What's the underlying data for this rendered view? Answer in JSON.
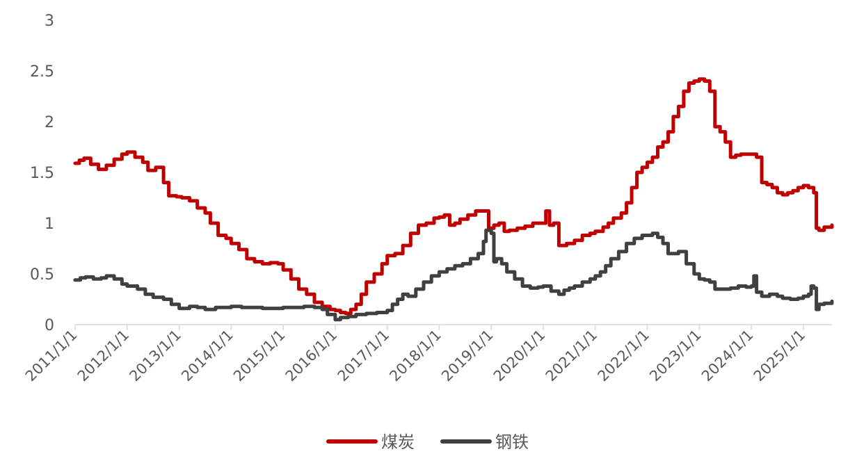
{
  "chart_data": {
    "type": "line",
    "x_tick_labels": [
      "2011/1/1",
      "2012/1/1",
      "2013/1/1",
      "2014/1/1",
      "2015/1/1",
      "2016/1/1",
      "2017/1/1",
      "2018/1/1",
      "2019/1/1",
      "2020/1/1",
      "2021/1/1",
      "2022/1/1",
      "2023/1/1",
      "2024/1/1",
      "2025/1/1"
    ],
    "y_tick_labels": [
      "0",
      "0.5",
      "1",
      "1.5",
      "2",
      "2.5",
      "3"
    ],
    "ylim": [
      0,
      3
    ],
    "xlim": [
      2011.0,
      2025.55
    ],
    "grid": false,
    "legend_position": "bottom",
    "series": [
      {
        "name": "煤炭",
        "color": "#C00000",
        "x": [
          2011.0,
          2011.08,
          2011.17,
          2011.3,
          2011.45,
          2011.6,
          2011.75,
          2011.9,
          2012.0,
          2012.15,
          2012.3,
          2012.4,
          2012.55,
          2012.7,
          2012.8,
          2012.95,
          2013.05,
          2013.2,
          2013.35,
          2013.5,
          2013.6,
          2013.75,
          2013.9,
          2014.0,
          2014.15,
          2014.3,
          2014.45,
          2014.6,
          2014.75,
          2014.9,
          2015.0,
          2015.15,
          2015.3,
          2015.45,
          2015.6,
          2015.75,
          2015.9,
          2016.0,
          2016.1,
          2016.2,
          2016.3,
          2016.4,
          2016.5,
          2016.6,
          2016.75,
          2016.9,
          2017.0,
          2017.15,
          2017.3,
          2017.45,
          2017.6,
          2017.75,
          2017.9,
          2018.0,
          2018.1,
          2018.2,
          2018.3,
          2018.4,
          2018.55,
          2018.7,
          2018.85,
          2018.95,
          2019.05,
          2019.15,
          2019.25,
          2019.35,
          2019.5,
          2019.65,
          2019.8,
          2019.95,
          2020.05,
          2020.12,
          2020.2,
          2020.3,
          2020.45,
          2020.6,
          2020.75,
          2020.9,
          2021.0,
          2021.15,
          2021.25,
          2021.35,
          2021.5,
          2021.6,
          2021.7,
          2021.8,
          2021.9,
          2022.0,
          2022.1,
          2022.2,
          2022.3,
          2022.4,
          2022.5,
          2022.6,
          2022.7,
          2022.8,
          2022.9,
          2023.0,
          2023.1,
          2023.2,
          2023.3,
          2023.4,
          2023.5,
          2023.6,
          2023.7,
          2023.8,
          2023.9,
          2024.0,
          2024.1,
          2024.2,
          2024.3,
          2024.4,
          2024.5,
          2024.6,
          2024.7,
          2024.8,
          2024.9,
          2025.0,
          2025.1,
          2025.2,
          2025.25,
          2025.3,
          2025.4,
          2025.55
        ],
        "values": [
          1.59,
          1.62,
          1.64,
          1.58,
          1.53,
          1.57,
          1.63,
          1.68,
          1.7,
          1.65,
          1.6,
          1.52,
          1.55,
          1.4,
          1.27,
          1.26,
          1.25,
          1.22,
          1.15,
          1.1,
          1.0,
          0.88,
          0.85,
          0.8,
          0.74,
          0.65,
          0.62,
          0.6,
          0.61,
          0.6,
          0.54,
          0.45,
          0.35,
          0.3,
          0.22,
          0.18,
          0.15,
          0.14,
          0.12,
          0.11,
          0.15,
          0.2,
          0.3,
          0.42,
          0.5,
          0.6,
          0.68,
          0.7,
          0.78,
          0.9,
          0.98,
          1.0,
          1.05,
          1.06,
          1.08,
          0.98,
          1.0,
          1.04,
          1.08,
          1.12,
          1.12,
          0.95,
          0.98,
          1.0,
          0.92,
          0.93,
          0.95,
          0.97,
          1.0,
          1.0,
          1.12,
          0.98,
          1.0,
          0.78,
          0.8,
          0.83,
          0.88,
          0.9,
          0.92,
          0.96,
          1.0,
          1.05,
          1.1,
          1.2,
          1.35,
          1.5,
          1.55,
          1.6,
          1.65,
          1.75,
          1.8,
          1.9,
          2.05,
          2.15,
          2.3,
          2.38,
          2.4,
          2.42,
          2.4,
          2.3,
          1.95,
          1.9,
          1.8,
          1.65,
          1.67,
          1.68,
          1.68,
          1.68,
          1.65,
          1.4,
          1.38,
          1.35,
          1.3,
          1.28,
          1.3,
          1.32,
          1.35,
          1.37,
          1.35,
          1.3,
          0.95,
          0.93,
          0.96,
          0.98
        ]
      },
      {
        "name": "钢铁",
        "color": "#404040",
        "x": [
          2011.0,
          2011.1,
          2011.2,
          2011.35,
          2011.5,
          2011.6,
          2011.75,
          2011.9,
          2012.0,
          2012.2,
          2012.35,
          2012.5,
          2012.7,
          2012.85,
          2013.0,
          2013.2,
          2013.35,
          2013.5,
          2013.7,
          2013.9,
          2014.0,
          2014.2,
          2014.4,
          2014.6,
          2014.8,
          2015.0,
          2015.2,
          2015.4,
          2015.6,
          2015.75,
          2015.85,
          2016.0,
          2016.1,
          2016.25,
          2016.4,
          2016.6,
          2016.8,
          2017.0,
          2017.1,
          2017.2,
          2017.3,
          2017.4,
          2017.55,
          2017.7,
          2017.85,
          2018.0,
          2018.15,
          2018.3,
          2018.45,
          2018.6,
          2018.75,
          2018.85,
          2018.9,
          2018.97,
          2019.0,
          2019.05,
          2019.1,
          2019.2,
          2019.3,
          2019.45,
          2019.6,
          2019.75,
          2019.9,
          2020.0,
          2020.15,
          2020.3,
          2020.4,
          2020.5,
          2020.6,
          2020.75,
          2020.9,
          2021.0,
          2021.1,
          2021.2,
          2021.3,
          2021.45,
          2021.6,
          2021.75,
          2021.9,
          2022.0,
          2022.1,
          2022.2,
          2022.3,
          2022.4,
          2022.5,
          2022.6,
          2022.75,
          2022.9,
          2023.0,
          2023.1,
          2023.2,
          2023.3,
          2023.45,
          2023.6,
          2023.75,
          2023.9,
          2024.0,
          2024.05,
          2024.1,
          2024.2,
          2024.35,
          2024.5,
          2024.6,
          2024.75,
          2024.9,
          2025.0,
          2025.1,
          2025.15,
          2025.2,
          2025.25,
          2025.3,
          2025.4,
          2025.55
        ],
        "values": [
          0.44,
          0.46,
          0.47,
          0.45,
          0.46,
          0.48,
          0.45,
          0.4,
          0.38,
          0.35,
          0.3,
          0.27,
          0.25,
          0.2,
          0.16,
          0.18,
          0.17,
          0.15,
          0.17,
          0.17,
          0.18,
          0.17,
          0.17,
          0.16,
          0.16,
          0.17,
          0.17,
          0.18,
          0.17,
          0.15,
          0.1,
          0.05,
          0.07,
          0.08,
          0.1,
          0.11,
          0.12,
          0.14,
          0.2,
          0.25,
          0.3,
          0.28,
          0.35,
          0.42,
          0.48,
          0.52,
          0.55,
          0.58,
          0.6,
          0.65,
          0.7,
          0.82,
          0.93,
          0.93,
          0.9,
          0.62,
          0.65,
          0.6,
          0.52,
          0.45,
          0.38,
          0.36,
          0.37,
          0.38,
          0.33,
          0.3,
          0.34,
          0.36,
          0.38,
          0.42,
          0.45,
          0.48,
          0.52,
          0.58,
          0.65,
          0.72,
          0.8,
          0.85,
          0.88,
          0.88,
          0.9,
          0.86,
          0.8,
          0.7,
          0.7,
          0.72,
          0.6,
          0.5,
          0.45,
          0.44,
          0.42,
          0.35,
          0.35,
          0.36,
          0.38,
          0.37,
          0.38,
          0.48,
          0.32,
          0.28,
          0.3,
          0.28,
          0.26,
          0.25,
          0.26,
          0.28,
          0.3,
          0.38,
          0.36,
          0.15,
          0.2,
          0.21,
          0.23
        ]
      }
    ]
  }
}
